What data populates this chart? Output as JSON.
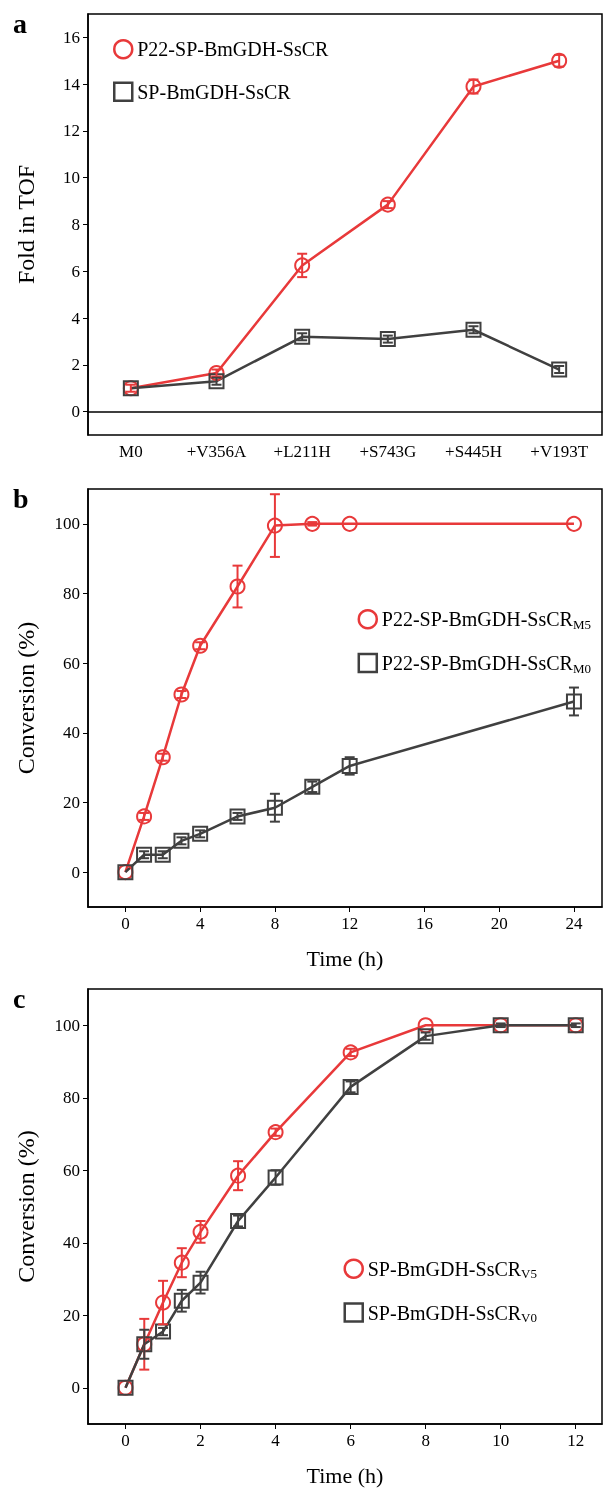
{
  "chart_data": [
    {
      "type": "line",
      "title": "a",
      "ylabel": "Fold in TOF",
      "categories": [
        "M0",
        "+V356A",
        "+L211H",
        "+S743G",
        "+S445H",
        "+V193T"
      ],
      "ylim": [
        -1,
        17
      ],
      "yticks": [
        0,
        2,
        4,
        6,
        8,
        10,
        12,
        14,
        16
      ],
      "legend": "top left",
      "series": [
        {
          "name": "P22-SP-BmGDH-SsCR",
          "color": "#e8393a",
          "marker": "circle",
          "values": [
            1.0,
            1.65,
            6.25,
            8.85,
            13.9,
            15.0
          ],
          "errors": [
            0.15,
            0.15,
            0.5,
            0.15,
            0.3,
            0.25
          ]
        },
        {
          "name": "SP-BmGDH-SsCR",
          "color": "#404040",
          "marker": "square",
          "values": [
            1.0,
            1.3,
            3.2,
            3.1,
            3.5,
            1.8
          ],
          "errors": [
            null,
            0.15,
            0.15,
            0.15,
            0.15,
            0.15
          ]
        }
      ]
    },
    {
      "type": "line",
      "title": "b",
      "xlabel": "Time (h)",
      "ylabel": "Conversion (%)",
      "xlim": [
        -2,
        25.5
      ],
      "xticks": [
        0,
        4,
        8,
        12,
        16,
        20,
        24
      ],
      "ylim": [
        -10,
        110
      ],
      "yticks": [
        0,
        20,
        40,
        60,
        80,
        100
      ],
      "legend": "right",
      "series": [
        {
          "name": "P22-SP-BmGDH-SsCR$_{M5}$",
          "color": "#e8393a",
          "marker": "circle",
          "x": [
            0,
            1,
            2,
            3,
            4,
            6,
            8,
            10,
            12,
            24
          ],
          "values": [
            0,
            16,
            33,
            51,
            65,
            82,
            99.5,
            100,
            100,
            100
          ],
          "errors": [
            null,
            1,
            1,
            1,
            1,
            6,
            9,
            0.5,
            null,
            null
          ]
        },
        {
          "name": "P22-SP-BmGDH-SsCR$_{M0}$",
          "color": "#404040",
          "marker": "square",
          "x": [
            0,
            1,
            2,
            3,
            4,
            6,
            8,
            10,
            12,
            24
          ],
          "values": [
            0,
            5,
            5,
            9,
            11,
            16,
            18.5,
            24.5,
            30.5,
            49
          ],
          "errors": [
            null,
            1,
            1,
            1,
            1,
            1,
            4,
            1.5,
            2.5,
            4
          ]
        }
      ]
    },
    {
      "type": "line",
      "title": "c",
      "xlabel": "Time (h)",
      "ylabel": "Conversion (%)",
      "xlim": [
        -1,
        12.7
      ],
      "xticks": [
        0,
        2,
        4,
        6,
        8,
        10,
        12
      ],
      "ylim": [
        -10,
        110
      ],
      "yticks": [
        0,
        20,
        40,
        60,
        80,
        100
      ],
      "legend": "bottom right",
      "series": [
        {
          "name": "SP-BmGDH-SsCR$_{V5}$",
          "color": "#e8393a",
          "marker": "circle",
          "x": [
            0,
            0.5,
            1,
            1.5,
            2,
            3,
            4,
            6,
            8,
            10,
            12
          ],
          "values": [
            0,
            12,
            23.5,
            34.5,
            43,
            58.5,
            70.5,
            92.5,
            100,
            100,
            100
          ],
          "errors": [
            null,
            7,
            6,
            4,
            3,
            4,
            1,
            1,
            null,
            null,
            null
          ]
        },
        {
          "name": "SP-BmGDH-SsCR$_{V0}$",
          "color": "#404040",
          "marker": "square",
          "x": [
            0,
            0.5,
            1,
            1.5,
            2,
            3,
            4,
            6,
            8,
            10,
            12
          ],
          "values": [
            0,
            12,
            15.5,
            24,
            29,
            46,
            58,
            83,
            97,
            100,
            100
          ],
          "errors": [
            null,
            4,
            1,
            3,
            3,
            1.5,
            2,
            1.5,
            1,
            0.5,
            0.5
          ]
        }
      ]
    }
  ]
}
